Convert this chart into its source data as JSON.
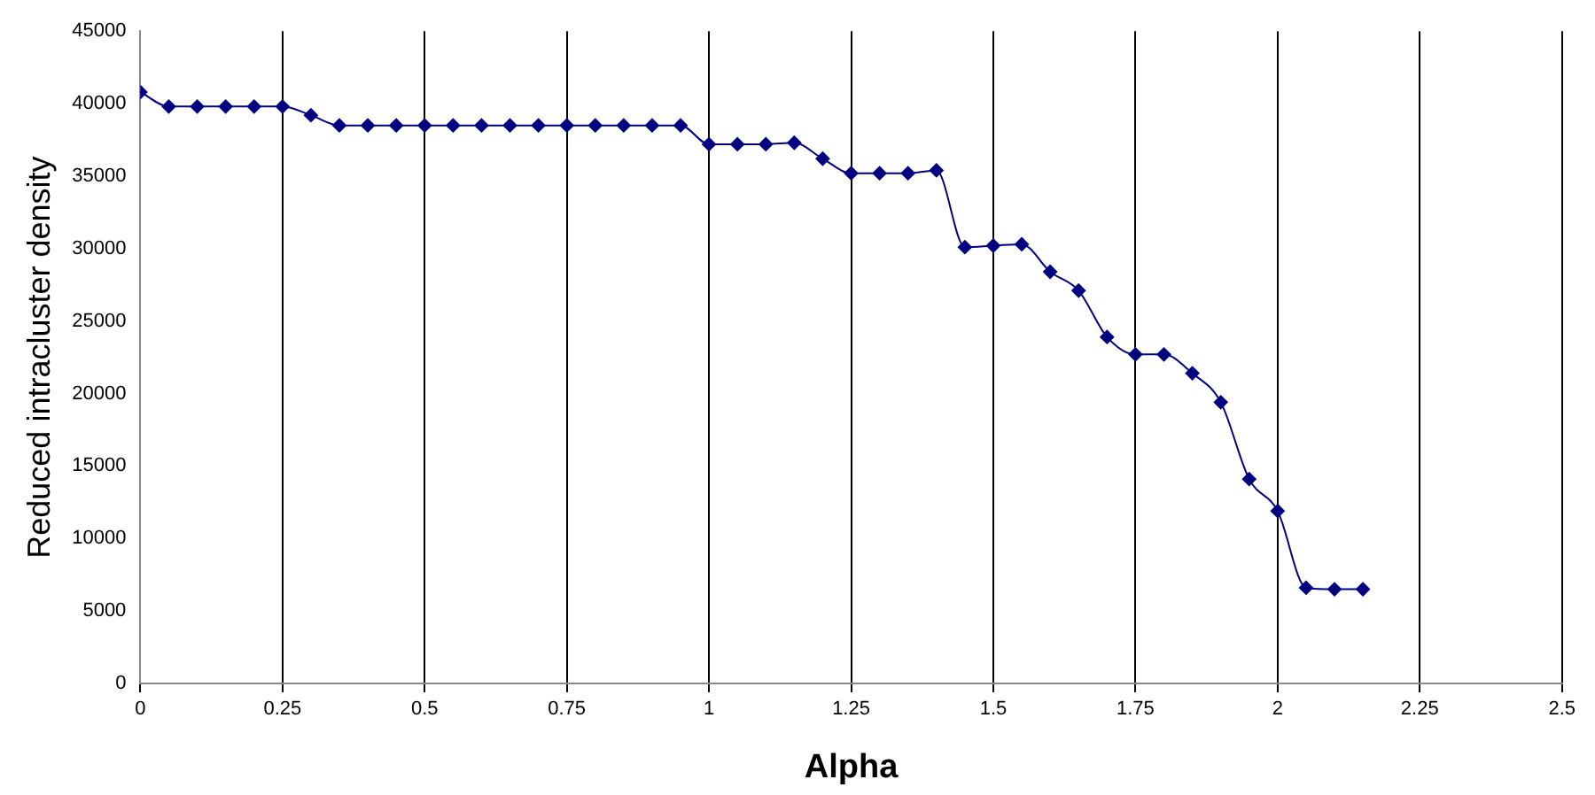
{
  "chart_data": {
    "type": "line",
    "xlabel": "Alpha",
    "ylabel": "Reduced intracluster density",
    "x": [
      0,
      0.05,
      0.1,
      0.15,
      0.2,
      0.25,
      0.3,
      0.35,
      0.4,
      0.45,
      0.5,
      0.55,
      0.6,
      0.65,
      0.7,
      0.75,
      0.8,
      0.85,
      0.9,
      0.95,
      1,
      1.05,
      1.1,
      1.15,
      1.2,
      1.25,
      1.3,
      1.35,
      1.4,
      1.45,
      1.5,
      1.55,
      1.6,
      1.65,
      1.7,
      1.75,
      1.8,
      1.85,
      1.9,
      1.95,
      2,
      2.05,
      2.1,
      2.15
    ],
    "series": [
      {
        "color": "#000080",
        "values": [
          40800,
          39800,
          39800,
          39800,
          39800,
          39800,
          39200,
          38500,
          38500,
          38500,
          38500,
          38500,
          38500,
          38500,
          38500,
          38500,
          38500,
          38500,
          38500,
          38500,
          37200,
          37200,
          37200,
          37300,
          36200,
          35200,
          35200,
          35200,
          35400,
          30100,
          30200,
          30300,
          28400,
          27100,
          23900,
          22700,
          22700,
          21400,
          19400,
          14100,
          11900,
          6600,
          6500,
          6500
        ]
      }
    ],
    "xlim": [
      0,
      2.5
    ],
    "xticks": [
      0,
      0.25,
      0.5,
      0.75,
      1,
      1.25,
      1.5,
      1.75,
      2,
      2.25,
      2.5
    ],
    "ylim": [
      0,
      45000
    ],
    "yticks": [
      0,
      5000,
      10000,
      15000,
      20000,
      25000,
      30000,
      35000,
      40000,
      45000
    ],
    "grid": "x",
    "marker": "diamond",
    "line_style": "solid",
    "legend": false
  }
}
